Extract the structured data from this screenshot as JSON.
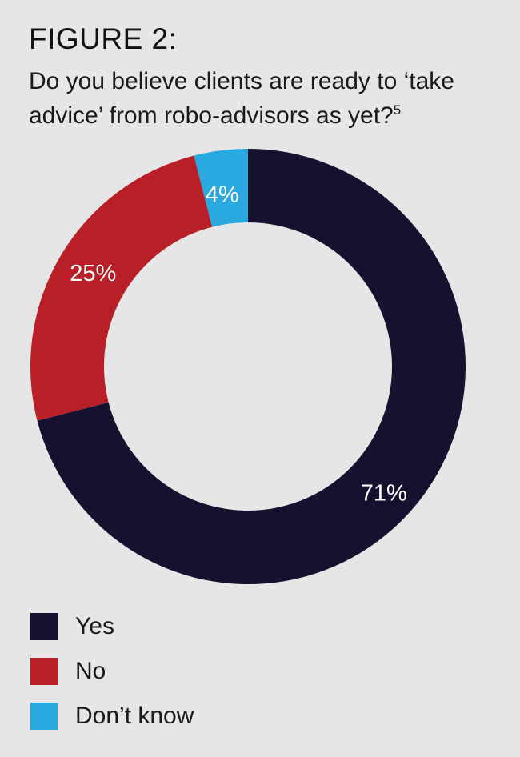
{
  "figure_label": "FIGURE 2:",
  "question": "Do you believe clients are ready to ‘take advice’ from robo-advisors as yet?",
  "footnote": "5",
  "chart_data": {
    "type": "pie",
    "variant": "donut",
    "series": [
      {
        "name": "Yes",
        "value": 71,
        "label": "71%",
        "color": "#16112e"
      },
      {
        "name": "No",
        "value": 25,
        "label": "25%",
        "color": "#b81f26"
      },
      {
        "name": "Don’t know",
        "value": 4,
        "label": "4%",
        "color": "#2aa9e0"
      }
    ],
    "legend_position": "bottom-left"
  },
  "legend": {
    "items": [
      {
        "label": "Yes",
        "color": "#16112e"
      },
      {
        "label": "No",
        "color": "#b81f26"
      },
      {
        "label": "Don’t know",
        "color": "#2aa9e0"
      }
    ]
  }
}
